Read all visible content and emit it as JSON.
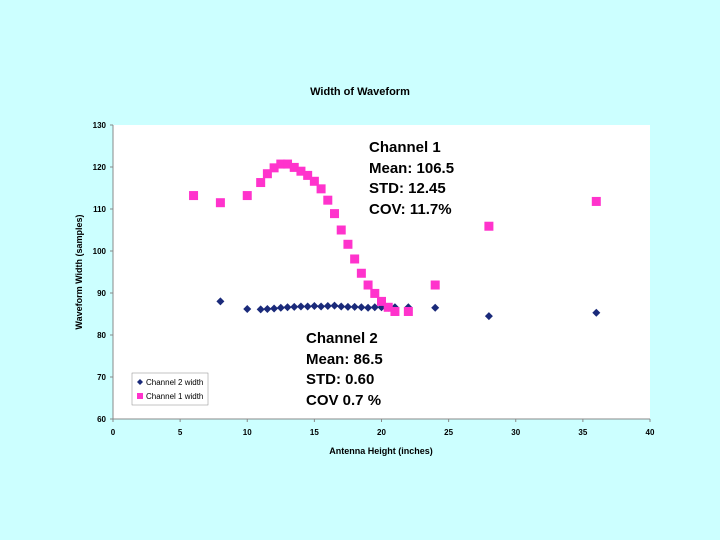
{
  "chart_data": {
    "type": "scatter",
    "title": "Width of Waveform",
    "xlabel": "Antenna Height (inches)",
    "ylabel": "Waveform Width (samples)",
    "xlim": [
      0,
      40
    ],
    "ylim": [
      60,
      130
    ],
    "xticks": [
      0,
      5,
      10,
      15,
      20,
      25,
      30,
      35,
      40
    ],
    "yticks": [
      60,
      70,
      80,
      90,
      100,
      110,
      120,
      130
    ],
    "grid": false,
    "legend_position": "bottom-left",
    "series": [
      {
        "name": "Channel 2 width",
        "marker": "diamond",
        "color": "#1a2a7a",
        "x": [
          8,
          10,
          11,
          11.5,
          12,
          12.5,
          13,
          13.5,
          14,
          14.5,
          15,
          15.5,
          16,
          16.5,
          17,
          17.5,
          18,
          18.5,
          19,
          19.5,
          20,
          20.5,
          21,
          22,
          24,
          28,
          36
        ],
        "y": [
          88,
          86.2,
          86.1,
          86.2,
          86.3,
          86.5,
          86.6,
          86.7,
          86.8,
          86.8,
          86.9,
          86.8,
          86.9,
          87,
          86.8,
          86.7,
          86.7,
          86.6,
          86.5,
          86.6,
          86.6,
          86.5,
          86.6,
          86.6,
          86.5,
          84.5,
          85.3
        ]
      },
      {
        "name": "Channel 1 width",
        "marker": "square",
        "color": "#ff33cc",
        "x": [
          6,
          8,
          10,
          11,
          11.5,
          12,
          12.5,
          13,
          13.5,
          14,
          14.5,
          15,
          15.5,
          16,
          16.5,
          17,
          17.5,
          18,
          18.5,
          19,
          19.5,
          20,
          20.5,
          21,
          22,
          24,
          28,
          36
        ],
        "y": [
          113.2,
          111.5,
          113.2,
          116.3,
          118.4,
          119.8,
          120.7,
          120.7,
          119.9,
          119,
          118,
          116.6,
          114.8,
          112.1,
          108.9,
          105,
          101.6,
          98.1,
          94.7,
          91.9,
          89.9,
          88,
          86.6,
          85.6,
          85.6,
          91.9,
          105.9,
          111.8
        ]
      }
    ],
    "annotations": [
      {
        "label": "Channel 1",
        "lines": [
          "Channel 1",
          "Mean: 106.5",
          "STD:  12.45",
          "COV:   11.7%"
        ]
      },
      {
        "label": "Channel 2",
        "lines": [
          "Channel 2",
          "Mean:  86.5",
          "STD:  0.60",
          "COV  0.7 %"
        ]
      }
    ]
  }
}
